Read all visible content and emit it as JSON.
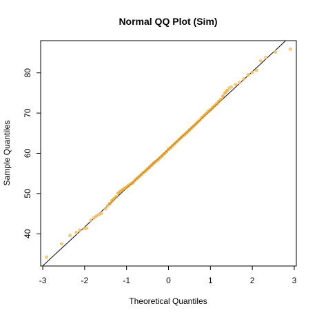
{
  "chart_data": {
    "type": "scatter",
    "title": "Normal QQ Plot (Sim)",
    "xlabel": "Theoretical Quantiles",
    "ylabel": "Sample Quantiles",
    "xlim": [
      -3.05,
      3.05
    ],
    "ylim": [
      32.0,
      88.0
    ],
    "x_ticks": [
      -3,
      -2,
      -1,
      0,
      1,
      2,
      3
    ],
    "y_ticks": [
      40,
      50,
      60,
      70,
      80
    ],
    "grid": false,
    "legend": "none",
    "point_color": "#F5C16A",
    "point_color_dense": "#E8A020",
    "line_color": "#000000",
    "reference_line": {
      "intercept": 61.0,
      "slope": 9.65
    },
    "points": [
      [
        -2.91,
        34.2
      ],
      [
        -2.55,
        37.5
      ],
      [
        -2.35,
        39.6
      ],
      [
        -2.2,
        40.3
      ],
      [
        -2.12,
        40.9
      ],
      [
        -2.0,
        41.3
      ],
      [
        -1.95,
        41.4
      ],
      [
        -1.85,
        43.4
      ],
      [
        -1.78,
        44.0
      ],
      [
        -1.72,
        44.4
      ],
      [
        -1.65,
        44.8
      ],
      [
        -1.6,
        45.1
      ],
      [
        -1.5,
        46.2
      ],
      [
        -1.45,
        47.0
      ],
      [
        -1.4,
        47.5
      ],
      [
        -1.35,
        48.2
      ],
      [
        -1.3,
        48.7
      ],
      [
        -1.25,
        49.2
      ],
      [
        -1.2,
        50.1
      ],
      [
        -1.15,
        50.5
      ],
      [
        -1.1,
        50.9
      ],
      [
        -1.05,
        51.3
      ],
      [
        -1.0,
        51.6
      ],
      [
        -0.95,
        52.0
      ],
      [
        -0.9,
        52.4
      ],
      [
        -0.85,
        52.7
      ],
      [
        -0.8,
        53.3
      ],
      [
        -0.75,
        53.8
      ],
      [
        -0.7,
        54.2
      ],
      [
        -0.65,
        54.7
      ],
      [
        -0.6,
        55.2
      ],
      [
        -0.55,
        55.6
      ],
      [
        -0.5,
        56.1
      ],
      [
        -0.45,
        56.6
      ],
      [
        -0.4,
        57.1
      ],
      [
        -0.35,
        57.6
      ],
      [
        -0.3,
        58.0
      ],
      [
        -0.25,
        58.4
      ],
      [
        -0.2,
        58.9
      ],
      [
        -0.15,
        59.4
      ],
      [
        -0.1,
        59.9
      ],
      [
        -0.05,
        60.4
      ],
      [
        0.0,
        61.0
      ],
      [
        0.05,
        61.4
      ],
      [
        0.1,
        61.9
      ],
      [
        0.15,
        62.4
      ],
      [
        0.2,
        62.9
      ],
      [
        0.25,
        63.4
      ],
      [
        0.3,
        63.9
      ],
      [
        0.35,
        64.4
      ],
      [
        0.4,
        64.8
      ],
      [
        0.45,
        65.3
      ],
      [
        0.5,
        65.8
      ],
      [
        0.55,
        66.3
      ],
      [
        0.6,
        66.8
      ],
      [
        0.65,
        67.3
      ],
      [
        0.7,
        67.8
      ],
      [
        0.75,
        68.3
      ],
      [
        0.8,
        68.9
      ],
      [
        0.85,
        69.4
      ],
      [
        0.9,
        69.9
      ],
      [
        0.95,
        70.4
      ],
      [
        1.0,
        70.8
      ],
      [
        1.05,
        71.3
      ],
      [
        1.1,
        71.8
      ],
      [
        1.15,
        72.3
      ],
      [
        1.2,
        72.9
      ],
      [
        1.25,
        73.4
      ],
      [
        1.3,
        74.2
      ],
      [
        1.35,
        75.0
      ],
      [
        1.4,
        75.6
      ],
      [
        1.45,
        76.2
      ],
      [
        1.5,
        76.5
      ],
      [
        1.6,
        77.1
      ],
      [
        1.7,
        77.6
      ],
      [
        1.8,
        78.5
      ],
      [
        1.9,
        79.5
      ],
      [
        2.0,
        80.1
      ],
      [
        2.1,
        80.6
      ],
      [
        2.2,
        83.0
      ],
      [
        2.32,
        83.8
      ],
      [
        2.55,
        85.2
      ],
      [
        2.91,
        85.9
      ]
    ]
  }
}
